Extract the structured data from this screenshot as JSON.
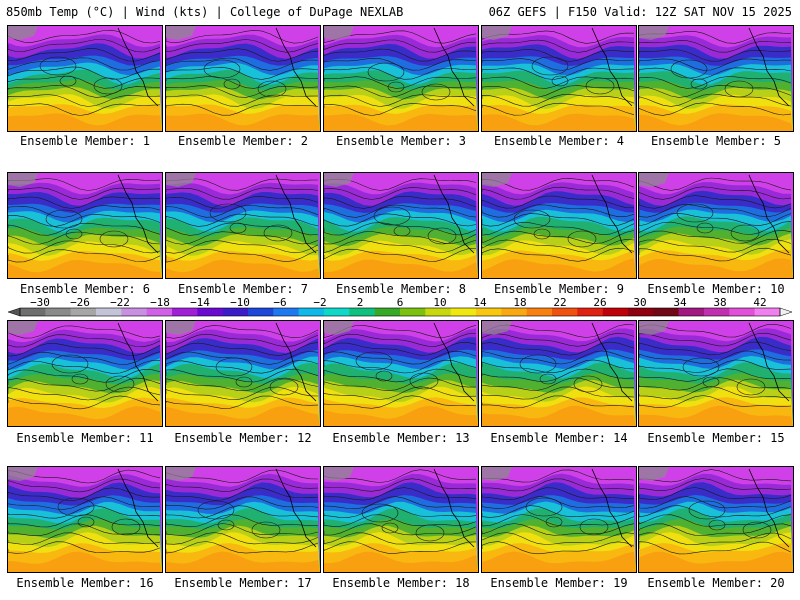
{
  "header": {
    "left": "850mb Temp (°C) | Wind (kts) | College of DuPage NEXLAB",
    "right": "06Z GEFS | F150 Valid: 12Z SAT NOV 15 2025"
  },
  "members": [
    "Ensemble Member: 1",
    "Ensemble Member: 2",
    "Ensemble Member: 3",
    "Ensemble Member: 4",
    "Ensemble Member: 5",
    "Ensemble Member: 6",
    "Ensemble Member: 7",
    "Ensemble Member: 8",
    "Ensemble Member: 9",
    "Ensemble Member: 10",
    "Ensemble Member: 11",
    "Ensemble Member: 12",
    "Ensemble Member: 13",
    "Ensemble Member: 14",
    "Ensemble Member: 15",
    "Ensemble Member: 16",
    "Ensemble Member: 17",
    "Ensemble Member: 18",
    "Ensemble Member: 19",
    "Ensemble Member: 20"
  ],
  "colorbar": {
    "labels": [
      "-30",
      "-26",
      "-22",
      "-18",
      "-14",
      "-10",
      "-6",
      "-2",
      "2",
      "6",
      "10",
      "14",
      "18",
      "22",
      "26",
      "30",
      "34",
      "38",
      "42"
    ],
    "colors": [
      "#6e6e6e",
      "#8a8a8a",
      "#a6a6a6",
      "#c4c4d8",
      "#c890e0",
      "#d060e8",
      "#a020d8",
      "#6a0ad0",
      "#3a1cc8",
      "#1e46d8",
      "#1e78f0",
      "#10b8e8",
      "#10d8c8",
      "#10c080",
      "#38a828",
      "#7cc010",
      "#c8d810",
      "#f0e810",
      "#f8c810",
      "#f8a810",
      "#f88010",
      "#f05010",
      "#e02010",
      "#c00008",
      "#900010",
      "#700818",
      "#a01880",
      "#c030b0",
      "#e050d8",
      "#f080f0"
    ],
    "unit": "°C"
  }
}
